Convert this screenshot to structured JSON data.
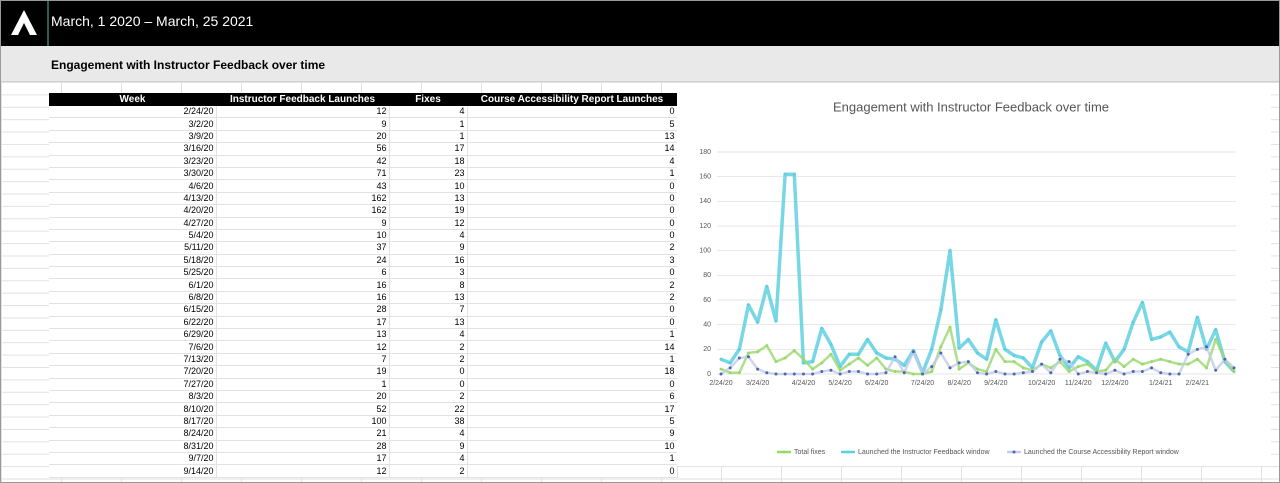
{
  "header": {
    "date_range": "March, 1 2020 – March, 25 2021"
  },
  "section_title": "Engagement with Instructor Feedback over time",
  "table": {
    "columns": [
      "Week",
      "Instructor Feedback Launches",
      "Fixes",
      "Course Accessibility Report Launches"
    ],
    "rows": [
      [
        "2/24/20",
        12,
        4,
        0
      ],
      [
        "3/2/20",
        9,
        1,
        5
      ],
      [
        "3/9/20",
        20,
        1,
        13
      ],
      [
        "3/16/20",
        56,
        17,
        14
      ],
      [
        "3/23/20",
        42,
        18,
        4
      ],
      [
        "3/30/20",
        71,
        23,
        1
      ],
      [
        "4/6/20",
        43,
        10,
        0
      ],
      [
        "4/13/20",
        162,
        13,
        0
      ],
      [
        "4/20/20",
        162,
        19,
        0
      ],
      [
        "4/27/20",
        9,
        12,
        0
      ],
      [
        "5/4/20",
        10,
        4,
        0
      ],
      [
        "5/11/20",
        37,
        9,
        2
      ],
      [
        "5/18/20",
        24,
        16,
        3
      ],
      [
        "5/25/20",
        6,
        3,
        0
      ],
      [
        "6/1/20",
        16,
        8,
        2
      ],
      [
        "6/8/20",
        16,
        13,
        2
      ],
      [
        "6/15/20",
        28,
        7,
        0
      ],
      [
        "6/22/20",
        17,
        13,
        0
      ],
      [
        "6/29/20",
        13,
        4,
        1
      ],
      [
        "7/6/20",
        12,
        2,
        14
      ],
      [
        "7/13/20",
        7,
        2,
        1
      ],
      [
        "7/20/20",
        19,
        0,
        18
      ],
      [
        "7/27/20",
        1,
        0,
        0
      ],
      [
        "8/3/20",
        20,
        2,
        6
      ],
      [
        "8/10/20",
        52,
        22,
        17
      ],
      [
        "8/17/20",
        100,
        38,
        5
      ],
      [
        "8/24/20",
        21,
        4,
        9
      ],
      [
        "8/31/20",
        28,
        9,
        10
      ],
      [
        "9/7/20",
        17,
        4,
        1
      ],
      [
        "9/14/20",
        12,
        2,
        0
      ]
    ]
  },
  "chart_data": {
    "type": "line",
    "title": "Engagement with Instructor Feedback over time",
    "categories": [
      "2/24/20",
      null,
      null,
      null,
      "3/24/20",
      null,
      null,
      null,
      null,
      "4/24/20",
      null,
      null,
      null,
      "5/24/20",
      null,
      null,
      null,
      "6/24/20",
      null,
      null,
      null,
      null,
      "7/24/20",
      null,
      null,
      null,
      "8/24/20",
      null,
      null,
      null,
      "9/24/20",
      null,
      null,
      null,
      null,
      "10/24/20",
      null,
      null,
      null,
      "11/24/20",
      null,
      null,
      null,
      "12/24/20",
      null,
      null,
      null,
      null,
      "1/24/21",
      null,
      null,
      null,
      "2/24/21",
      null,
      null,
      null,
      null
    ],
    "ylim": [
      0,
      180
    ],
    "yticks": [
      0,
      20,
      40,
      60,
      80,
      100,
      120,
      140,
      160,
      180
    ],
    "grid": true,
    "legend": "bottom",
    "series": [
      {
        "name": "Launched the Instructor Feedback window",
        "color": "#5fd0e0",
        "values": [
          12,
          9,
          20,
          56,
          42,
          71,
          43,
          162,
          162,
          9,
          10,
          37,
          24,
          6,
          16,
          16,
          28,
          17,
          13,
          12,
          7,
          19,
          1,
          20,
          52,
          100,
          21,
          28,
          17,
          12,
          44,
          20,
          15,
          13,
          5,
          26,
          35,
          15,
          5,
          14,
          10,
          3,
          25,
          10,
          20,
          42,
          58,
          28,
          30,
          34,
          22,
          18,
          46,
          20,
          36,
          10,
          2
        ]
      },
      {
        "name": "Total fixes",
        "color": "#9ad86e",
        "values": [
          4,
          1,
          1,
          17,
          18,
          23,
          10,
          13,
          19,
          12,
          4,
          9,
          16,
          3,
          8,
          13,
          7,
          13,
          4,
          2,
          2,
          0,
          0,
          2,
          22,
          38,
          4,
          9,
          4,
          2,
          20,
          10,
          10,
          5,
          3,
          8,
          5,
          10,
          2,
          6,
          8,
          2,
          3,
          12,
          6,
          12,
          8,
          10,
          12,
          10,
          8,
          8,
          12,
          5,
          28,
          12,
          2
        ]
      },
      {
        "name": "Launched the Course Accessibility Report window",
        "color": "#4a68b0",
        "values": [
          0,
          5,
          13,
          14,
          4,
          1,
          0,
          0,
          0,
          0,
          0,
          2,
          3,
          0,
          2,
          2,
          0,
          0,
          1,
          14,
          1,
          18,
          0,
          6,
          17,
          5,
          9,
          10,
          1,
          0,
          2,
          0,
          0,
          1,
          2,
          8,
          1,
          12,
          10,
          0,
          2,
          1,
          0,
          3,
          0,
          2,
          2,
          5,
          1,
          0,
          0,
          16,
          20,
          22,
          3,
          12,
          5
        ]
      }
    ]
  }
}
